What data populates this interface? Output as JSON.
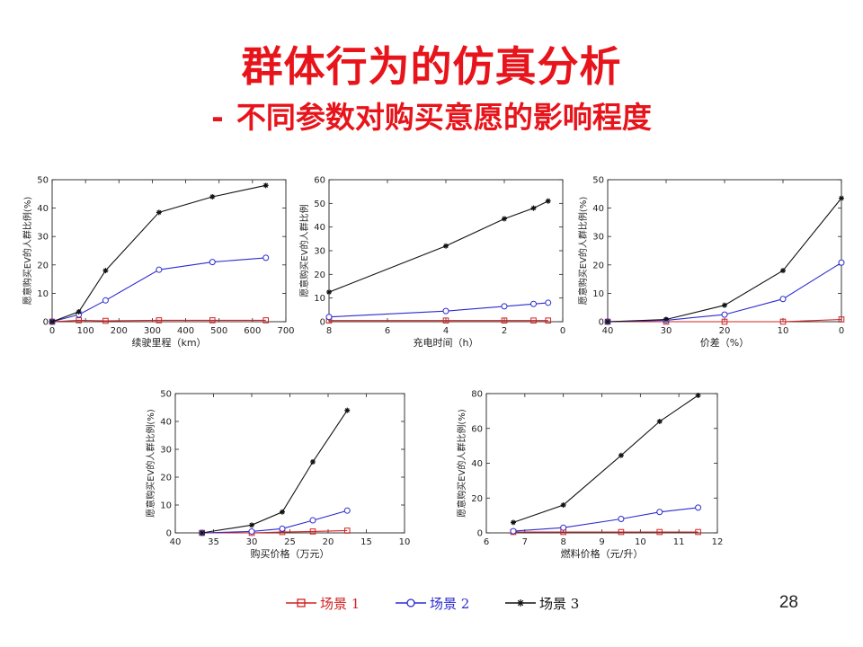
{
  "title": "群体行为的仿真分析",
  "subtitle_dash": "-",
  "subtitle": "不同参数对购买意愿的影响程度",
  "page_number": "28",
  "colors": {
    "title": "#e8141b",
    "scenario1": "#d42020",
    "scenario2": "#2b2bd0",
    "scenario3": "#111111"
  },
  "legend": [
    {
      "label": "场景 1",
      "color": "#d42020",
      "marker": "square"
    },
    {
      "label": "场景 2",
      "color": "#2b2bd0",
      "marker": "circle"
    },
    {
      "label": "场景 3",
      "color": "#111111",
      "marker": "star"
    }
  ],
  "chart_data": [
    {
      "type": "line",
      "xlabel": "续驶里程（km）",
      "ylabel": "愿意购买EV的人群比例(%)",
      "xlim": [
        0,
        700
      ],
      "ylim": [
        0,
        50
      ],
      "xticks": [
        0,
        100,
        200,
        300,
        400,
        500,
        600,
        700
      ],
      "yticks": [
        0,
        10,
        20,
        30,
        40,
        50
      ],
      "x_reversed": false,
      "series": [
        {
          "x": [
            0,
            80,
            160,
            320,
            480,
            640
          ],
          "values": [
            0,
            0.5,
            0.3,
            0.5,
            0.5,
            0.5
          ]
        },
        {
          "x": [
            0,
            80,
            160,
            320,
            480,
            640
          ],
          "values": [
            0,
            2.5,
            7.5,
            18.3,
            21,
            22.5
          ]
        },
        {
          "x": [
            0,
            80,
            160,
            320,
            480,
            640
          ],
          "values": [
            0,
            3.5,
            18,
            38.5,
            44,
            48
          ]
        }
      ]
    },
    {
      "type": "line",
      "xlabel": "充电时间（h）",
      "ylabel": "愿意购买EV的人群比例",
      "xlim": [
        8,
        0
      ],
      "ylim": [
        0,
        60
      ],
      "xticks": [
        8,
        6,
        4,
        2,
        0
      ],
      "yticks": [
        0,
        10,
        20,
        30,
        40,
        50,
        60
      ],
      "x_reversed": true,
      "series": [
        {
          "x": [
            8,
            4,
            2,
            1,
            0.5
          ],
          "values": [
            0.5,
            0.5,
            0.5,
            0.5,
            0.5
          ]
        },
        {
          "x": [
            8,
            4,
            2,
            1,
            0.5
          ],
          "values": [
            2,
            4.5,
            6.5,
            7.5,
            8
          ]
        },
        {
          "x": [
            8,
            4,
            2,
            1,
            0.5
          ],
          "values": [
            12.5,
            32,
            43.5,
            48,
            51
          ]
        }
      ]
    },
    {
      "type": "line",
      "xlabel": "价差（%）",
      "ylabel": "愿意购买EV的人群比例(%)",
      "xlim": [
        40,
        0
      ],
      "ylim": [
        0,
        50
      ],
      "xticks": [
        40,
        30,
        20,
        10,
        0
      ],
      "yticks": [
        0,
        10,
        20,
        30,
        40,
        50
      ],
      "x_reversed": true,
      "series": [
        {
          "x": [
            40,
            30,
            20,
            10,
            0
          ],
          "values": [
            0,
            0,
            0,
            0,
            0.8
          ]
        },
        {
          "x": [
            40,
            30,
            20,
            10,
            0
          ],
          "values": [
            0,
            0.5,
            2.5,
            8,
            20.8
          ]
        },
        {
          "x": [
            40,
            30,
            20,
            10,
            0
          ],
          "values": [
            0,
            0.8,
            5.8,
            18,
            43.5
          ]
        }
      ]
    },
    {
      "type": "line",
      "xlabel": "购买价格（万元）",
      "ylabel": "愿意购买EV的人群比例(%)",
      "xlim": [
        40,
        10
      ],
      "ylim": [
        0,
        50
      ],
      "xticks": [
        40,
        35,
        30,
        25,
        20,
        15,
        10
      ],
      "yticks": [
        0,
        10,
        20,
        30,
        40,
        50
      ],
      "x_reversed": true,
      "series": [
        {
          "x": [
            36.5,
            30,
            26,
            22,
            17.5
          ],
          "values": [
            0,
            0,
            0.3,
            0.5,
            0.8
          ]
        },
        {
          "x": [
            36.5,
            30,
            26,
            22,
            17.5
          ],
          "values": [
            0,
            0.5,
            1.5,
            4.5,
            8
          ]
        },
        {
          "x": [
            36.5,
            30,
            26,
            22,
            17.5
          ],
          "values": [
            0,
            2.8,
            7.5,
            25.5,
            44
          ]
        }
      ]
    },
    {
      "type": "line",
      "xlabel": "燃料价格（元/升）",
      "ylabel": "愿意购买EV的人群比例(%)",
      "xlim": [
        6,
        12
      ],
      "ylim": [
        0,
        80
      ],
      "xticks": [
        6,
        7,
        8,
        9,
        10,
        11,
        12
      ],
      "yticks": [
        0,
        20,
        40,
        60,
        80
      ],
      "x_reversed": false,
      "series": [
        {
          "x": [
            6.7,
            8,
            9.5,
            10.5,
            11.5
          ],
          "values": [
            0.5,
            0.5,
            0.5,
            0.5,
            0.5
          ]
        },
        {
          "x": [
            6.7,
            8,
            9.5,
            10.5,
            11.5
          ],
          "values": [
            1,
            3,
            8,
            12,
            14.5
          ]
        },
        {
          "x": [
            6.7,
            8,
            9.5,
            10.5,
            11.5
          ],
          "values": [
            6,
            16,
            44.5,
            64,
            79
          ]
        }
      ]
    }
  ]
}
